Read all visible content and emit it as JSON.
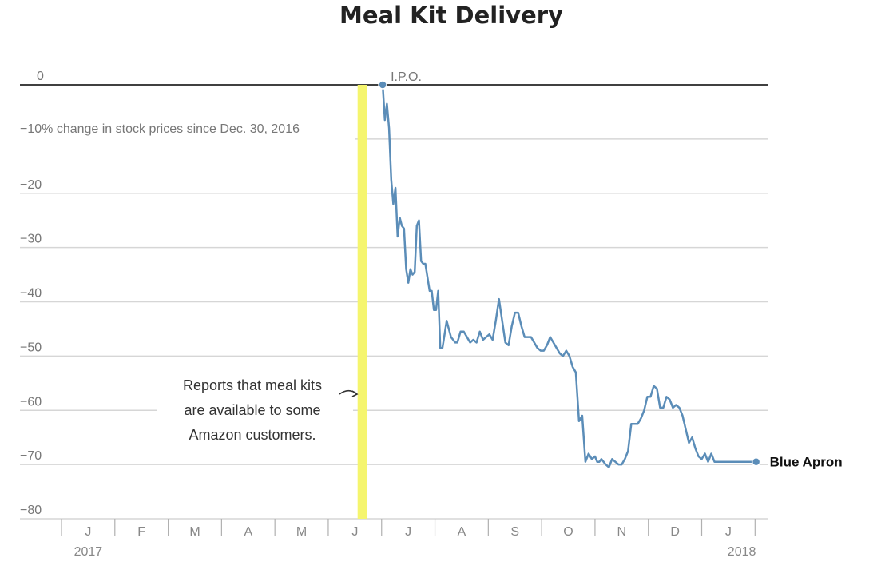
{
  "chart_data": {
    "type": "line",
    "title": "Meal Kit Delivery",
    "ylabel": "% change in stock prices since Dec. 30, 2016",
    "ylim": [
      -80,
      0
    ],
    "yticks": [
      0,
      -10,
      -20,
      -30,
      -40,
      -50,
      -60,
      -70,
      -80
    ],
    "ytick_labels": [
      "0",
      "−10",
      "−20",
      "−30",
      "−40",
      "−50",
      "−60",
      "−70",
      "−80"
    ],
    "x_domain": [
      0,
      13.25
    ],
    "months": [
      "J",
      "F",
      "M",
      "A",
      "M",
      "J",
      "J",
      "A",
      "S",
      "O",
      "N",
      "D",
      "J"
    ],
    "years": [
      {
        "label": "2017",
        "x": 0.5
      },
      {
        "label": "2018",
        "x": 12.75
      }
    ],
    "highlight": {
      "from": 5.55,
      "to": 5.72,
      "color": "#f5f56e"
    },
    "annotations": [
      {
        "name": "ipo-annotation",
        "text": "I.P.O.",
        "x": 6.14,
        "y": 0
      },
      {
        "name": "amazon-annotation",
        "lines": [
          "Reports that meal kits",
          "are available to some",
          "Amazon customers."
        ]
      }
    ],
    "series": [
      {
        "name": "Blue Apron",
        "color": "#5b8db8",
        "x": [
          6.02,
          6.06,
          6.1,
          6.14,
          6.18,
          6.22,
          6.26,
          6.3,
          6.34,
          6.38,
          6.42,
          6.46,
          6.5,
          6.54,
          6.58,
          6.62,
          6.66,
          6.7,
          6.74,
          6.78,
          6.82,
          6.86,
          6.9,
          6.94,
          6.98,
          7.02,
          7.06,
          7.1,
          7.14,
          7.18,
          7.22,
          7.26,
          7.3,
          7.34,
          7.38,
          7.42,
          7.48,
          7.54,
          7.6,
          7.66,
          7.72,
          7.78,
          7.84,
          7.9,
          7.96,
          8.02,
          8.08,
          8.14,
          8.2,
          8.26,
          8.32,
          8.38,
          8.44,
          8.5,
          8.56,
          8.62,
          8.68,
          8.74,
          8.8,
          8.86,
          8.92,
          8.98,
          9.04,
          9.1,
          9.16,
          9.22,
          9.28,
          9.34,
          9.4,
          9.46,
          9.52,
          9.58,
          9.64,
          9.7,
          9.76,
          9.82,
          9.88,
          9.94,
          10.0,
          10.04,
          10.08,
          10.12,
          10.16,
          10.2,
          10.26,
          10.32,
          10.38,
          10.44,
          10.5,
          10.56,
          10.62,
          10.68,
          10.74,
          10.8,
          10.86,
          10.92,
          10.98,
          11.04,
          11.1,
          11.16,
          11.22,
          11.28,
          11.34,
          11.4,
          11.46,
          11.52,
          11.58,
          11.64,
          11.7,
          11.76,
          11.82,
          11.88,
          11.94,
          12.0,
          12.06,
          12.12,
          12.18,
          12.24,
          12.3,
          12.36,
          12.42,
          12.48,
          12.54,
          12.6,
          12.66,
          12.72,
          12.78,
          12.84,
          12.9,
          12.96,
          13.02
        ],
        "values": [
          0,
          -6.5,
          -3.5,
          -8,
          -17.5,
          -22,
          -19,
          -28,
          -24.5,
          -26,
          -26.5,
          -34,
          -36.5,
          -34,
          -35,
          -34.5,
          -26,
          -25,
          -32.5,
          -33,
          -33,
          -35.5,
          -38,
          -38,
          -41.5,
          -41.5,
          -38,
          -48.5,
          -48.5,
          -46,
          -43.5,
          -45,
          -46.5,
          -47,
          -47.5,
          -47.5,
          -45.5,
          -45.5,
          -46.5,
          -47.5,
          -47,
          -47.5,
          -45.5,
          -47,
          -46.5,
          -46,
          -47,
          -43.5,
          -39.5,
          -43.5,
          -47.5,
          -48,
          -44.5,
          -42,
          -42,
          -44.5,
          -46.5,
          -46.5,
          -46.5,
          -47.5,
          -48.5,
          -49,
          -49,
          -48,
          -46.5,
          -47.5,
          -48.5,
          -49.5,
          -50,
          -49,
          -50,
          -52,
          -53,
          -62,
          -61,
          -69.5,
          -68,
          -69,
          -68.5,
          -69.5,
          -69.5,
          -69,
          -69.5,
          -70,
          -70.5,
          -69,
          -69.5,
          -70,
          -70,
          -69,
          -67.5,
          -62.5,
          -62.5,
          -62.5,
          -61.5,
          -60,
          -57.5,
          -57.5,
          -55.5,
          -56,
          -59.5,
          -59.5,
          -57.5,
          -58,
          -59.5,
          -59,
          -59.5,
          -61,
          -63.5,
          -66,
          -65,
          -67,
          -68.5,
          -69,
          -68,
          -69.5,
          -68,
          -69.5,
          -69.5,
          -69.5,
          -69.5,
          -69.5,
          -69.5,
          -69.5,
          -69.5,
          -69.5,
          -69.5,
          -69.5,
          -69.5,
          -69.5,
          -69.5
        ],
        "end_value": -69.5
      }
    ]
  }
}
